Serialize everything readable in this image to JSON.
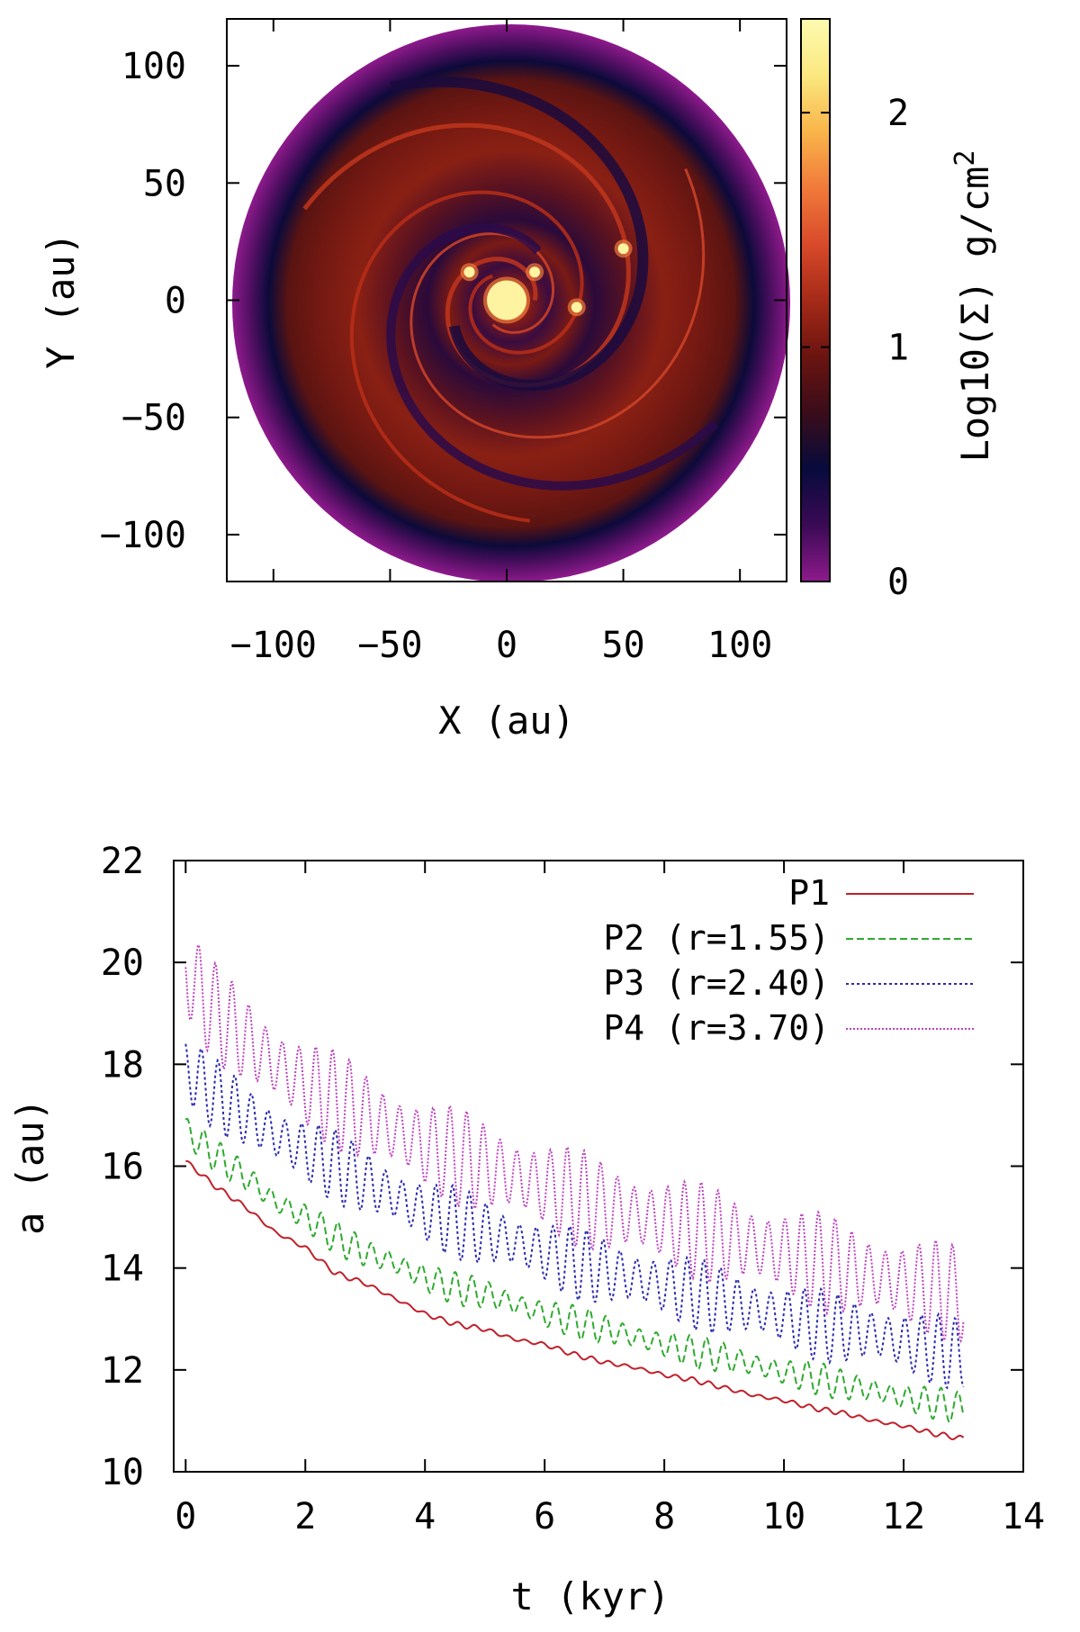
{
  "chart_data": [
    {
      "type": "heatmap",
      "title": "",
      "xlabel": "X (au)",
      "ylabel": "Y (au)",
      "xlim": [
        -120,
        120
      ],
      "ylim": [
        -120,
        120
      ],
      "x_ticks": [
        "−100",
        "−50",
        "0",
        "50",
        "100"
      ],
      "x_tick_values": [
        -100,
        -50,
        0,
        50,
        100
      ],
      "y_ticks": [
        "100",
        "50",
        "0",
        "−50",
        "−100"
      ],
      "y_tick_values": [
        100,
        50,
        0,
        -50,
        -100
      ],
      "colorbar": {
        "label": "Log10(Σ)  g/cm",
        "label_sup": "2",
        "range": [
          0,
          2.4
        ],
        "ticks": [
          "2",
          "1",
          "0"
        ],
        "tick_values": [
          2,
          1,
          0
        ],
        "colors": [
          "#8e1a8c",
          "#3a0a55",
          "#070b3c",
          "#3a0c1a",
          "#6b1410",
          "#a52a18",
          "#d94a2a",
          "#f07a3a",
          "#f9b54a",
          "#fbe880",
          "#fdfbb0"
        ]
      },
      "disk": {
        "outer_radius_au": 120,
        "inner_radius_au": 0
      },
      "clumps": [
        {
          "x": 0,
          "y": 0,
          "log_sigma": 2.4
        },
        {
          "x": 30,
          "y": -3,
          "log_sigma": 2.1
        },
        {
          "x": 50,
          "y": 22,
          "log_sigma": 2.1
        },
        {
          "x": -16,
          "y": 12,
          "log_sigma": 1.9
        },
        {
          "x": 12,
          "y": 12,
          "log_sigma": 1.8
        }
      ]
    },
    {
      "type": "line",
      "xlabel": "t (kyr)",
      "ylabel": "a (au)",
      "xlim": [
        -0.2,
        14
      ],
      "ylim": [
        10,
        22
      ],
      "x_ticks": [
        "0",
        "2",
        "4",
        "6",
        "8",
        "10",
        "12",
        "14"
      ],
      "x_tick_values": [
        0,
        2,
        4,
        6,
        8,
        10,
        12,
        14
      ],
      "y_ticks": [
        "22",
        "20",
        "18",
        "16",
        "14",
        "12",
        "10"
      ],
      "y_tick_values": [
        22,
        20,
        18,
        16,
        14,
        12,
        10
      ],
      "legend_position": "top-right",
      "x": [
        0,
        0.5,
        1,
        1.5,
        2,
        2.5,
        3,
        3.5,
        4,
        4.5,
        5,
        5.5,
        6,
        6.5,
        7,
        7.5,
        8,
        8.5,
        9,
        9.5,
        10,
        10.5,
        11,
        11.5,
        12,
        12.5,
        13
      ],
      "series": [
        {
          "name": "P1",
          "color": "#c0202a",
          "dash": "solid",
          "wiggle": 0.04,
          "values": [
            16.1,
            15.6,
            15.2,
            14.7,
            14.4,
            13.9,
            13.7,
            13.4,
            13.1,
            12.9,
            12.8,
            12.6,
            12.5,
            12.3,
            12.15,
            12.05,
            11.9,
            11.8,
            11.65,
            11.5,
            11.4,
            11.25,
            11.15,
            11.0,
            10.9,
            10.75,
            10.65
          ]
        },
        {
          "name": "P2 (r=1.55)",
          "color": "#2faa2f",
          "dash": "8,4",
          "wiggle": 0.25,
          "values": [
            16.7,
            16.2,
            15.8,
            15.3,
            15.0,
            14.6,
            14.3,
            14.1,
            13.8,
            13.6,
            13.5,
            13.3,
            13.1,
            12.95,
            12.8,
            12.65,
            12.5,
            12.35,
            12.25,
            12.1,
            11.95,
            11.85,
            11.7,
            11.6,
            11.45,
            11.35,
            11.25
          ]
        },
        {
          "name": "P3 (r=2.40)",
          "color": "#2a2ab0",
          "dash": "3,3",
          "wiggle": 0.55,
          "values": [
            17.9,
            17.4,
            17.0,
            16.6,
            16.3,
            16.0,
            15.7,
            15.4,
            15.1,
            14.9,
            14.7,
            14.5,
            14.3,
            14.1,
            13.95,
            13.8,
            13.65,
            13.5,
            13.35,
            13.2,
            13.05,
            12.9,
            12.8,
            12.7,
            12.55,
            12.4,
            12.3
          ]
        },
        {
          "name": "P4 (r=3.70)",
          "color": "#c040c0",
          "dash": "2,2",
          "wiggle": 0.75,
          "values": [
            19.8,
            19.0,
            18.5,
            18.0,
            17.6,
            17.3,
            17.0,
            16.7,
            16.4,
            16.2,
            16.0,
            15.8,
            15.6,
            15.4,
            15.2,
            15.05,
            14.9,
            14.75,
            14.6,
            14.45,
            14.3,
            14.15,
            14.0,
            13.85,
            13.7,
            13.6,
            13.45
          ]
        }
      ]
    }
  ]
}
